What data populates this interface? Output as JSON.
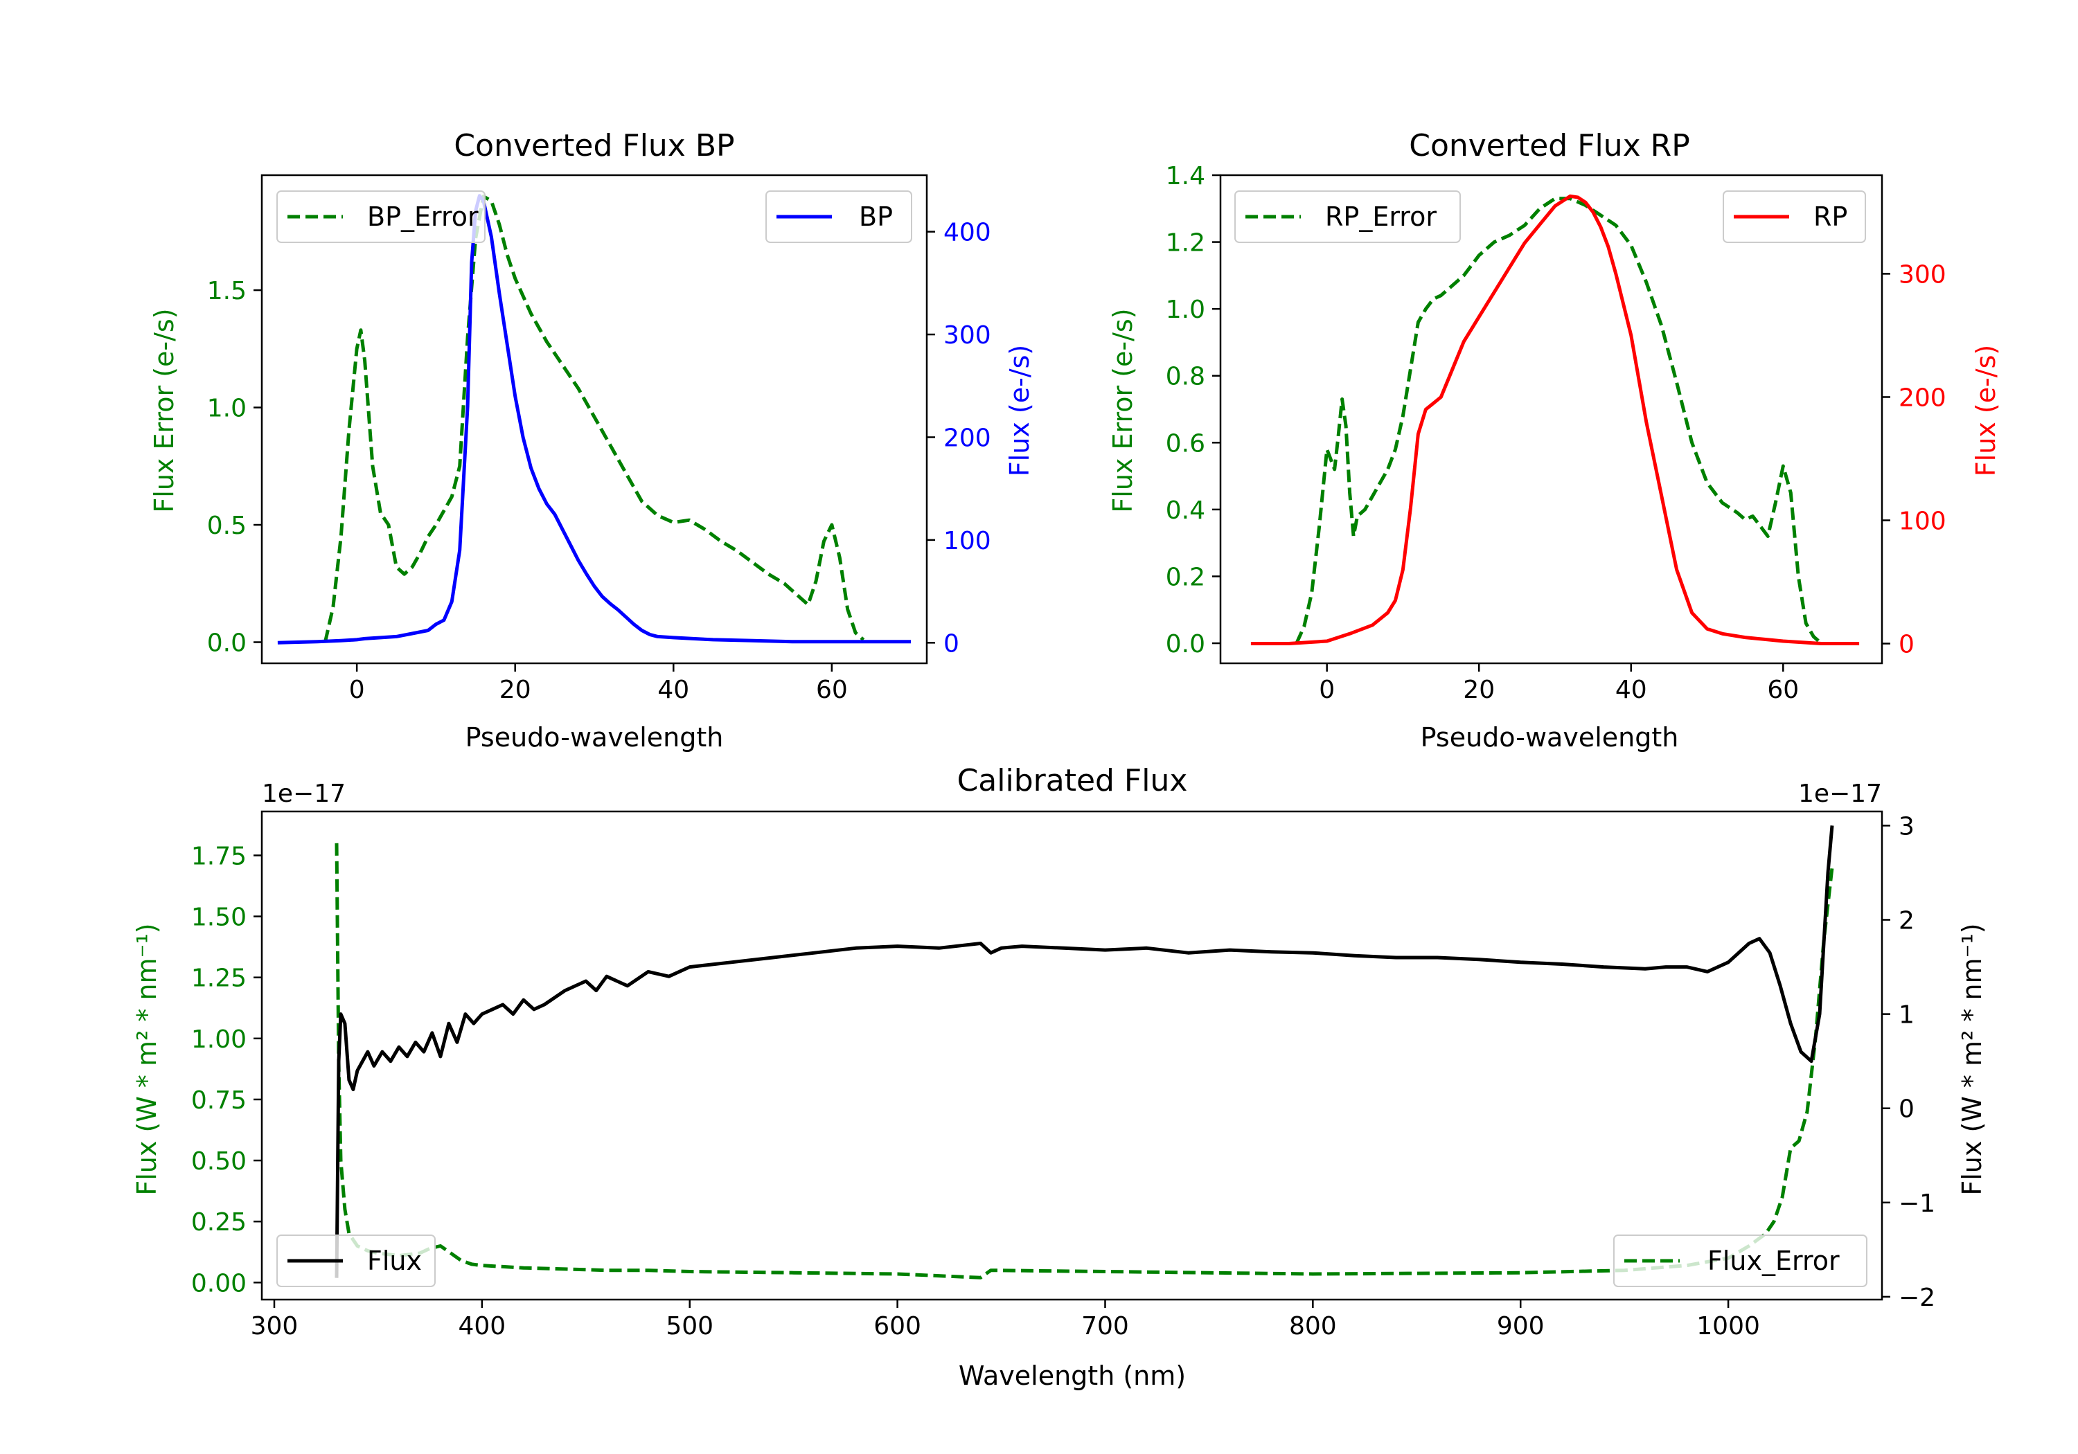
{
  "chart_data": [
    {
      "id": "bp",
      "type": "line",
      "title": "Converted Flux BP",
      "xlabel": "Pseudo-wavelength",
      "xlim": [
        -12,
        72
      ],
      "xticks": [
        0,
        20,
        40,
        60
      ],
      "left_axis": {
        "label": "Flux Error (e-/s)",
        "color": "#008000",
        "ylim": [
          -0.09,
          1.99
        ],
        "ticks": [
          0.0,
          0.5,
          1.0,
          1.5
        ],
        "tick_labels": [
          "0.0",
          "0.5",
          "1.0",
          "1.5"
        ]
      },
      "right_axis": {
        "label": "Flux (e-/s)",
        "color": "#0000ff",
        "ylim": [
          -20,
          455
        ],
        "ticks": [
          0,
          100,
          200,
          300,
          400
        ],
        "tick_labels": [
          "0",
          "100",
          "200",
          "300",
          "400"
        ]
      },
      "series": [
        {
          "name": "BP_Error",
          "axis": "left",
          "color": "#008000",
          "dashed": true,
          "x": [
            -4,
            -3,
            -2,
            -1,
            0,
            0.5,
            1,
            2,
            3,
            4,
            5,
            6,
            7,
            8,
            9,
            10,
            11,
            12,
            13,
            14,
            15,
            16,
            17,
            18,
            19,
            20,
            22,
            24,
            26,
            28,
            30,
            32,
            34,
            36,
            38,
            40,
            42,
            44,
            46,
            48,
            50,
            52,
            54,
            56,
            57,
            58,
            59,
            60,
            61,
            62,
            63,
            64
          ],
          "y": [
            0.0,
            0.15,
            0.45,
            0.9,
            1.25,
            1.33,
            1.2,
            0.75,
            0.55,
            0.5,
            0.32,
            0.29,
            0.32,
            0.38,
            0.45,
            0.5,
            0.56,
            0.62,
            0.75,
            1.3,
            1.72,
            1.9,
            1.88,
            1.78,
            1.65,
            1.55,
            1.4,
            1.28,
            1.18,
            1.08,
            0.96,
            0.84,
            0.72,
            0.6,
            0.54,
            0.51,
            0.52,
            0.48,
            0.43,
            0.39,
            0.34,
            0.29,
            0.25,
            0.19,
            0.16,
            0.26,
            0.43,
            0.5,
            0.36,
            0.14,
            0.04,
            0.01
          ]
        },
        {
          "name": "BP",
          "axis": "right",
          "color": "#0000ff",
          "dashed": false,
          "x": [
            -10,
            -5,
            -2,
            0,
            1,
            3,
            5,
            7,
            9,
            10,
            11,
            12,
            13,
            14,
            14.5,
            15,
            15.5,
            16,
            17,
            18,
            19,
            20,
            21,
            22,
            23,
            24,
            25,
            26,
            27,
            28,
            29,
            30,
            31,
            32,
            33,
            34,
            35,
            36,
            37,
            38,
            40,
            45,
            50,
            55,
            60,
            65,
            70
          ],
          "y": [
            0,
            1,
            2,
            3,
            4,
            5,
            6,
            9,
            12,
            18,
            22,
            40,
            90,
            230,
            370,
            420,
            435,
            430,
            395,
            340,
            290,
            240,
            200,
            170,
            150,
            135,
            125,
            110,
            95,
            80,
            67,
            55,
            45,
            38,
            32,
            25,
            18,
            12,
            8,
            6,
            5,
            3,
            2,
            1,
            1,
            1,
            1
          ]
        }
      ],
      "legend": [
        {
          "label": "BP_Error",
          "position": "upper-left"
        },
        {
          "label": "BP",
          "position": "upper-right"
        }
      ]
    },
    {
      "id": "rp",
      "type": "line",
      "title": "Converted Flux RP",
      "xlabel": "Pseudo-wavelength",
      "xlim": [
        -14,
        73
      ],
      "xticks": [
        0,
        20,
        40,
        60
      ],
      "left_axis": {
        "label": "Flux Error (e-/s)",
        "color": "#008000",
        "ylim": [
          -0.06,
          1.4
        ],
        "ticks": [
          0.0,
          0.2,
          0.4,
          0.6,
          0.8,
          1.0,
          1.2,
          1.4
        ],
        "tick_labels": [
          "0.0",
          "0.2",
          "0.4",
          "0.6",
          "0.8",
          "1.0",
          "1.2",
          "1.4"
        ]
      },
      "right_axis": {
        "label": "Flux (e-/s)",
        "color": "#ff0000",
        "ylim": [
          -16,
          380
        ],
        "ticks": [
          0,
          100,
          200,
          300
        ],
        "tick_labels": [
          "0",
          "100",
          "200",
          "300"
        ]
      },
      "series": [
        {
          "name": "RP_Error",
          "axis": "left",
          "color": "#008000",
          "dashed": true,
          "x": [
            -4,
            -3,
            -2,
            -1,
            0,
            0.5,
            1,
            1.5,
            2,
            2.5,
            3,
            3.5,
            4,
            5,
            6,
            7,
            8,
            9,
            10,
            11,
            12,
            13,
            14,
            15,
            16,
            18,
            20,
            22,
            24,
            26,
            28,
            30,
            32,
            34,
            36,
            38,
            40,
            42,
            44,
            46,
            48,
            50,
            52,
            54,
            55,
            56,
            57,
            58,
            59,
            60,
            61,
            62,
            63,
            64,
            65
          ],
          "y": [
            0.0,
            0.05,
            0.15,
            0.35,
            0.58,
            0.55,
            0.52,
            0.62,
            0.73,
            0.65,
            0.45,
            0.32,
            0.38,
            0.4,
            0.44,
            0.48,
            0.52,
            0.58,
            0.68,
            0.82,
            0.96,
            1.0,
            1.03,
            1.04,
            1.06,
            1.1,
            1.16,
            1.2,
            1.22,
            1.25,
            1.3,
            1.33,
            1.33,
            1.31,
            1.28,
            1.25,
            1.19,
            1.08,
            0.95,
            0.78,
            0.6,
            0.48,
            0.42,
            0.39,
            0.37,
            0.38,
            0.35,
            0.32,
            0.42,
            0.53,
            0.45,
            0.2,
            0.06,
            0.02,
            0.0
          ]
        },
        {
          "name": "RP",
          "axis": "right",
          "color": "#ff0000",
          "dashed": false,
          "x": [
            -10,
            -5,
            0,
            3,
            6,
            8,
            9,
            10,
            11,
            12,
            13,
            14,
            15,
            16,
            17,
            18,
            20,
            22,
            24,
            26,
            28,
            30,
            32,
            33,
            34,
            35,
            36,
            37,
            38,
            40,
            42,
            44,
            46,
            48,
            50,
            52,
            55,
            60,
            65,
            70
          ],
          "y": [
            0,
            0,
            2,
            8,
            15,
            25,
            35,
            60,
            110,
            170,
            190,
            195,
            200,
            215,
            230,
            245,
            265,
            285,
            305,
            325,
            340,
            355,
            363,
            362,
            358,
            350,
            338,
            322,
            300,
            250,
            180,
            120,
            60,
            25,
            12,
            8,
            5,
            2,
            0,
            0
          ]
        }
      ],
      "legend": [
        {
          "label": "RP_Error",
          "position": "upper-left"
        },
        {
          "label": "RP",
          "position": "upper-right"
        }
      ]
    },
    {
      "id": "cal",
      "type": "line",
      "title": "Calibrated Flux",
      "xlabel": "Wavelength (nm)",
      "xlim": [
        294,
        1074
      ],
      "xticks": [
        300,
        400,
        500,
        600,
        700,
        800,
        900,
        1000
      ],
      "left_axis": {
        "label": "Flux (W * m² * nm⁻¹)",
        "color": "#008000",
        "offset_text": "1e−17",
        "ylim": [
          -0.07,
          1.93
        ],
        "ticks": [
          0.0,
          0.25,
          0.5,
          0.75,
          1.0,
          1.25,
          1.5,
          1.75
        ],
        "tick_labels": [
          "0.00",
          "0.25",
          "0.50",
          "0.75",
          "1.00",
          "1.25",
          "1.50",
          "1.75"
        ]
      },
      "right_axis": {
        "label": "Flux (W * m² * nm⁻¹)",
        "color": "#000000",
        "offset_text": "1e−17",
        "ylim": [
          -2.03,
          3.15
        ],
        "ticks": [
          -2,
          -1,
          0,
          1,
          2,
          3
        ],
        "tick_labels": [
          "−2",
          "−1",
          "0",
          "1",
          "2",
          "3"
        ]
      },
      "series": [
        {
          "name": "Flux_Error",
          "axis": "left",
          "color": "#008000",
          "dashed": true,
          "x": [
            330,
            331,
            332,
            334,
            336,
            340,
            345,
            350,
            360,
            370,
            375,
            380,
            385,
            390,
            395,
            400,
            410,
            420,
            440,
            460,
            480,
            500,
            550,
            600,
            640,
            645,
            700,
            800,
            900,
            950,
            980,
            1000,
            1010,
            1018,
            1022,
            1026,
            1030,
            1034,
            1038,
            1042,
            1046,
            1050
          ],
          "y": [
            1.8,
            0.9,
            0.5,
            0.3,
            0.2,
            0.15,
            0.13,
            0.12,
            0.11,
            0.12,
            0.14,
            0.15,
            0.12,
            0.09,
            0.075,
            0.07,
            0.065,
            0.06,
            0.055,
            0.05,
            0.05,
            0.045,
            0.04,
            0.035,
            0.02,
            0.05,
            0.045,
            0.035,
            0.04,
            0.05,
            0.07,
            0.1,
            0.15,
            0.2,
            0.25,
            0.35,
            0.55,
            0.58,
            0.7,
            1.0,
            1.4,
            1.7
          ]
        },
        {
          "name": "Flux",
          "axis": "right",
          "color": "#000000",
          "dashed": false,
          "x": [
            330,
            331,
            332,
            334,
            336,
            338,
            340,
            345,
            348,
            352,
            356,
            360,
            364,
            368,
            372,
            376,
            380,
            384,
            388,
            392,
            396,
            400,
            405,
            410,
            415,
            420,
            425,
            430,
            440,
            450,
            455,
            460,
            470,
            480,
            490,
            500,
            520,
            540,
            560,
            580,
            600,
            620,
            640,
            645,
            650,
            660,
            680,
            700,
            720,
            740,
            760,
            780,
            800,
            820,
            840,
            860,
            880,
            900,
            920,
            940,
            960,
            970,
            980,
            990,
            1000,
            1010,
            1015,
            1020,
            1025,
            1030,
            1035,
            1040,
            1044,
            1048,
            1050
          ],
          "y": [
            -1.8,
            0.5,
            1.0,
            0.9,
            0.3,
            0.2,
            0.4,
            0.6,
            0.45,
            0.6,
            0.5,
            0.65,
            0.55,
            0.7,
            0.6,
            0.8,
            0.55,
            0.9,
            0.7,
            1.0,
            0.9,
            1.0,
            1.05,
            1.1,
            1.0,
            1.15,
            1.05,
            1.1,
            1.25,
            1.35,
            1.25,
            1.4,
            1.3,
            1.45,
            1.4,
            1.5,
            1.55,
            1.6,
            1.65,
            1.7,
            1.72,
            1.7,
            1.75,
            1.65,
            1.7,
            1.72,
            1.7,
            1.68,
            1.7,
            1.65,
            1.68,
            1.66,
            1.65,
            1.62,
            1.6,
            1.6,
            1.58,
            1.55,
            1.53,
            1.5,
            1.48,
            1.5,
            1.5,
            1.45,
            1.55,
            1.75,
            1.8,
            1.65,
            1.3,
            0.9,
            0.6,
            0.5,
            1.0,
            2.5,
            3.0
          ]
        }
      ],
      "legend": [
        {
          "label": "Flux",
          "position": "lower-left"
        },
        {
          "label": "Flux_Error",
          "position": "lower-right"
        }
      ]
    }
  ]
}
